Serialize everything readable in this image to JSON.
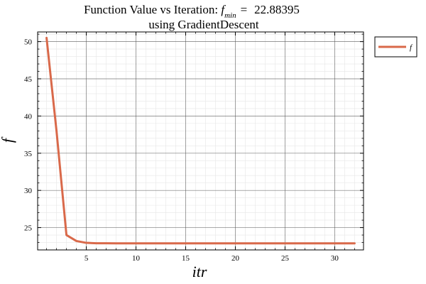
{
  "chart_data": {
    "type": "line",
    "title_prefix": "Function Value vs Iteration: ",
    "title_symbol": "f",
    "title_subscript": "min",
    "title_equals": "=",
    "title_value": "22.88395",
    "subtitle": "using GradientDescent",
    "xlabel": "itr",
    "ylabel": "f",
    "xlim": [
      0.1,
      32.9
    ],
    "ylim": [
      22.0,
      51.3
    ],
    "xticks": [
      5,
      10,
      15,
      20,
      25,
      30
    ],
    "yticks": [
      25,
      30,
      35,
      40,
      45,
      50
    ],
    "xtick_labels": [
      "5",
      "10",
      "15",
      "20",
      "25",
      "30"
    ],
    "ytick_labels": [
      "25",
      "30",
      "35",
      "40",
      "45",
      "50"
    ],
    "grid": true,
    "minor_grid": true,
    "legend_position": "outside-top-right",
    "series": [
      {
        "name": "f",
        "color": "#d9694a",
        "x": [
          1,
          2,
          3,
          4,
          5,
          6,
          7,
          8,
          9,
          10,
          11,
          12,
          13,
          14,
          15,
          16,
          17,
          18,
          19,
          20,
          21,
          22,
          23,
          24,
          25,
          26,
          27,
          28,
          29,
          30,
          31,
          32
        ],
        "y": [
          50.5,
          38.0,
          24.0,
          23.2,
          22.95,
          22.9,
          22.89,
          22.885,
          22.884,
          22.884,
          22.884,
          22.884,
          22.884,
          22.884,
          22.884,
          22.884,
          22.884,
          22.884,
          22.884,
          22.884,
          22.884,
          22.884,
          22.884,
          22.884,
          22.884,
          22.884,
          22.884,
          22.884,
          22.884,
          22.884,
          22.884,
          22.884
        ]
      }
    ]
  }
}
